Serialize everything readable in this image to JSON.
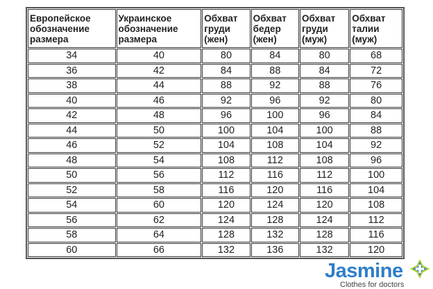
{
  "table": {
    "headers": [
      [
        "Европейское",
        "обозначение",
        "размера"
      ],
      [
        "Украинское",
        "обозначение",
        "размера"
      ],
      [
        "Обхват",
        "груди",
        "(жен)"
      ],
      [
        "Обхват",
        "бедер",
        "(жен)"
      ],
      [
        "Обхват",
        "груди",
        "(муж)"
      ],
      [
        "Обхват",
        "талии",
        "(муж)"
      ]
    ],
    "rows": [
      [
        "34",
        "40",
        "80",
        "84",
        "80",
        "68"
      ],
      [
        "36",
        "42",
        "84",
        "88",
        "84",
        "72"
      ],
      [
        "38",
        "44",
        "88",
        "92",
        "88",
        "76"
      ],
      [
        "40",
        "46",
        "92",
        "96",
        "92",
        "80"
      ],
      [
        "42",
        "48",
        "96",
        "100",
        "96",
        "84"
      ],
      [
        "44",
        "50",
        "100",
        "104",
        "100",
        "88"
      ],
      [
        "46",
        "52",
        "104",
        "108",
        "104",
        "92"
      ],
      [
        "48",
        "54",
        "108",
        "112",
        "108",
        "96"
      ],
      [
        "50",
        "56",
        "112",
        "116",
        "112",
        "100"
      ],
      [
        "52",
        "58",
        "116",
        "120",
        "116",
        "104"
      ],
      [
        "54",
        "60",
        "120",
        "124",
        "120",
        "108"
      ],
      [
        "56",
        "62",
        "124",
        "128",
        "124",
        "112"
      ],
      [
        "58",
        "64",
        "128",
        "132",
        "128",
        "116"
      ],
      [
        "60",
        "66",
        "132",
        "136",
        "132",
        "120"
      ]
    ]
  },
  "logo": {
    "brand": "Jasmine",
    "tagline": "Clothes for doctors",
    "colors": {
      "brand": "#2f7ec8",
      "accent": "#b5d334"
    }
  }
}
